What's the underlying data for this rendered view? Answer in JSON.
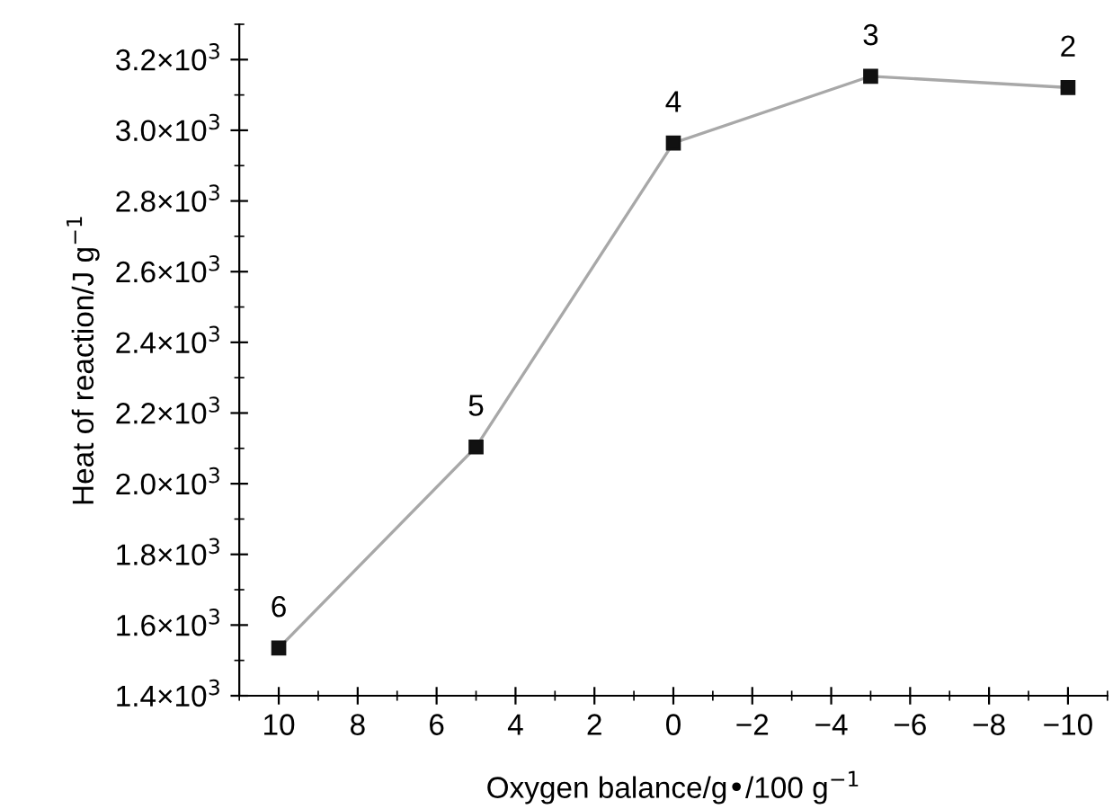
{
  "chart_data": {
    "type": "line",
    "xlabel": "Oxygen balance/g•/100 g$^{−1}$",
    "ylabel": "Heat of reaction/J g$^{−1}$",
    "x": [
      10,
      5,
      0,
      -5,
      -10
    ],
    "series": [
      {
        "color": "#a8a8a8",
        "values": [
          1535,
          2104,
          2964,
          3153,
          3121
        ]
      }
    ],
    "annotations": [
      {
        "text": "6",
        "x": 10,
        "y": 1535
      },
      {
        "text": "5",
        "x": 5,
        "y": 2104
      },
      {
        "text": "4",
        "x": 0,
        "y": 2964
      },
      {
        "text": "3",
        "x": -5,
        "y": 3153
      },
      {
        "text": "2",
        "x": -10,
        "y": 3121
      }
    ],
    "marker": "square",
    "line_style": "solid",
    "grid": false,
    "legend": false,
    "xlim": [
      11,
      -11
    ],
    "xticks": [
      10,
      8,
      6,
      4,
      2,
      0,
      {
        "value": -2,
        "label": "−2"
      },
      {
        "value": -4,
        "label": "−4"
      },
      {
        "value": -6,
        "label": "−6"
      },
      {
        "value": -8,
        "label": "−8"
      },
      {
        "value": -10,
        "label": "−10"
      }
    ],
    "ylim": [
      1400,
      3300
    ],
    "yticks": [
      {
        "value": 1400,
        "label": "1.4×10$^{3}$"
      },
      {
        "value": 1600,
        "label": "1.6×10$^{3}$"
      },
      {
        "value": 1800,
        "label": "1.8×10$^{3}$"
      },
      {
        "value": 2000,
        "label": "2.0×10$^{3}$"
      },
      {
        "value": 2200,
        "label": "2.2×10$^{3}$"
      },
      {
        "value": 2400,
        "label": "2.4×10$^{3}$"
      },
      {
        "value": 2600,
        "label": "2.6×10$^{3}$"
      },
      {
        "value": 2800,
        "label": "2.8×10$^{3}$"
      },
      {
        "value": 3000,
        "label": "3.0×10$^{3}$"
      },
      {
        "value": 3200,
        "label": "3.2×10$^{3}$"
      }
    ]
  }
}
